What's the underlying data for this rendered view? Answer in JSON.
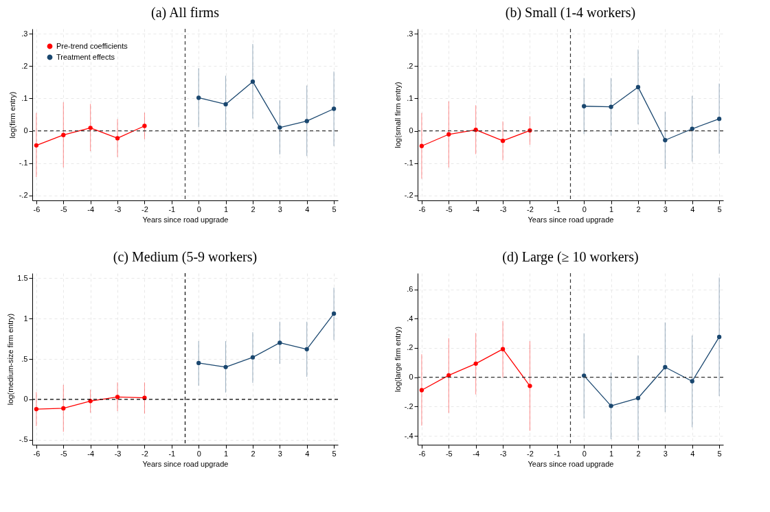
{
  "chart_data": [
    {
      "type": "line",
      "title": "(a) All firms",
      "xlabel": "Years since road upgrade",
      "ylabel": "log(firm entry)",
      "xlim": [
        -6.15,
        5.15
      ],
      "xticks": [
        -6,
        -5,
        -4,
        -3,
        -2,
        -1,
        0,
        1,
        2,
        3,
        4,
        5
      ],
      "ylim": [
        -0.215,
        0.315
      ],
      "yticks": [
        {
          "value": -0.2,
          "label": "-.2"
        },
        {
          "value": -0.1,
          "label": "-.1"
        },
        0,
        {
          "value": 0.1,
          "label": ".1"
        },
        {
          "value": 0.2,
          "label": ".2"
        },
        {
          "value": 0.3,
          "label": ".3"
        }
      ],
      "grid": true,
      "legend": "top left",
      "marker": "circle",
      "series": [
        {
          "name": "Pre-trend coefficients",
          "color": "#ff0000",
          "x": [
            -6,
            -5,
            -4,
            -3,
            -2
          ],
          "values": [
            -0.045,
            -0.013,
            0.009,
            -0.023,
            0.015
          ],
          "errors": [
            [
              -0.143,
              0.055
            ],
            [
              -0.113,
              0.088
            ],
            [
              -0.063,
              0.083
            ],
            [
              -0.081,
              0.036
            ],
            [
              -0.026,
              0.056
            ]
          ]
        },
        {
          "name": "Treatment effects",
          "color": "#1a476f",
          "x": [
            0,
            1,
            2,
            3,
            4,
            5
          ],
          "values": [
            0.102,
            0.082,
            0.152,
            0.01,
            0.03,
            0.068
          ],
          "errors": [
            [
              0.011,
              0.193
            ],
            [
              -0.004,
              0.17
            ],
            [
              0.038,
              0.268
            ],
            [
              -0.073,
              0.094
            ],
            [
              -0.078,
              0.14
            ],
            [
              -0.047,
              0.183
            ]
          ]
        }
      ],
      "ref_lines": [
        {
          "axis": "y",
          "value": 0,
          "color": "#333333",
          "line_style": "dashed"
        },
        {
          "axis": "x",
          "value": -0.5,
          "color": "#333333",
          "line_style": "dashed"
        }
      ]
    },
    {
      "type": "line",
      "title": "(b) Small (1-4 workers)",
      "xlabel": "Years since road upgrade",
      "ylabel": "log(small firm entry)",
      "xlim": [
        -6.15,
        5.15
      ],
      "xticks": [
        -6,
        -5,
        -4,
        -3,
        -2,
        -1,
        0,
        1,
        2,
        3,
        4,
        5
      ],
      "ylim": [
        -0.215,
        0.315
      ],
      "yticks": [
        {
          "value": -0.2,
          "label": "-.2"
        },
        {
          "value": -0.1,
          "label": "-.1"
        },
        0,
        {
          "value": 0.1,
          "label": ".1"
        },
        {
          "value": 0.2,
          "label": ".2"
        },
        {
          "value": 0.3,
          "label": ".3"
        }
      ],
      "grid": true,
      "legend": "top left",
      "marker": "circle",
      "series": [
        {
          "name": "Pre-trend coefficients",
          "color": "#ff0000",
          "x": [
            -6,
            -5,
            -4,
            -3,
            -2
          ],
          "values": [
            -0.047,
            -0.011,
            0.003,
            -0.031,
            0.001
          ],
          "errors": [
            [
              -0.148,
              0.055
            ],
            [
              -0.113,
              0.091
            ],
            [
              -0.072,
              0.079
            ],
            [
              -0.091,
              0.029
            ],
            [
              -0.043,
              0.045
            ]
          ]
        },
        {
          "name": "Treatment effects",
          "color": "#1a476f",
          "x": [
            0,
            1,
            2,
            3,
            4,
            5
          ],
          "values": [
            0.076,
            0.074,
            0.135,
            -0.029,
            0.006,
            0.037
          ],
          "errors": [
            [
              -0.01,
              0.163
            ],
            [
              -0.015,
              0.163
            ],
            [
              0.02,
              0.251
            ],
            [
              -0.117,
              0.059
            ],
            [
              -0.095,
              0.108
            ],
            [
              -0.071,
              0.146
            ]
          ]
        }
      ],
      "ref_lines": [
        {
          "axis": "y",
          "value": 0,
          "color": "#333333",
          "line_style": "dashed"
        },
        {
          "axis": "x",
          "value": -0.5,
          "color": "#333333",
          "line_style": "dashed"
        }
      ]
    },
    {
      "type": "line",
      "title": "(c) Medium (5-9 workers)",
      "xlabel": "Years since road upgrade",
      "ylabel": "log(medium-size firm entry)",
      "xlim": [
        -6.15,
        5.15
      ],
      "xticks": [
        -6,
        -5,
        -4,
        -3,
        -2,
        -1,
        0,
        1,
        2,
        3,
        4,
        5
      ],
      "ylim": [
        -0.56,
        1.56
      ],
      "yticks": [
        {
          "value": -0.5,
          "label": "-.5"
        },
        0,
        {
          "value": 0.5,
          "label": ".5"
        },
        1,
        1.5
      ],
      "grid": true,
      "legend": "top left",
      "marker": "circle",
      "series": [
        {
          "name": "Pre-trend coefficients",
          "color": "#ff0000",
          "x": [
            -6,
            -5,
            -4,
            -3,
            -2
          ],
          "values": [
            -0.12,
            -0.11,
            -0.02,
            0.03,
            0.02
          ],
          "errors": [
            [
              -0.33,
              0.09
            ],
            [
              -0.4,
              0.18
            ],
            [
              -0.165,
              0.12
            ],
            [
              -0.145,
              0.21
            ],
            [
              -0.175,
              0.21
            ]
          ]
        },
        {
          "name": "Treatment effects",
          "color": "#1a476f",
          "x": [
            0,
            1,
            2,
            3,
            4,
            5
          ],
          "values": [
            0.45,
            0.4,
            0.52,
            0.7,
            0.62,
            1.06
          ],
          "errors": [
            [
              0.17,
              0.72
            ],
            [
              0.085,
              0.72
            ],
            [
              0.205,
              0.83
            ],
            [
              0.44,
              0.96
            ],
            [
              0.28,
              0.96
            ],
            [
              0.735,
              1.38
            ]
          ]
        }
      ],
      "ref_lines": [
        {
          "axis": "y",
          "value": 0,
          "color": "#000000",
          "line_style": "dashed"
        },
        {
          "axis": "x",
          "value": -0.5,
          "color": "#000000",
          "line_style": "dashed"
        }
      ]
    },
    {
      "type": "line",
      "title": "(d) Large (≥ 10 workers)",
      "xlabel": "Years since road upgrade",
      "ylabel": "log(large firm entry)",
      "xlim": [
        -6.15,
        5.15
      ],
      "xticks": [
        -6,
        -5,
        -4,
        -3,
        -2,
        -1,
        0,
        1,
        2,
        3,
        4,
        5
      ],
      "ylim": [
        -0.46,
        0.71
      ],
      "yticks": [
        {
          "value": -0.4,
          "label": "-.4"
        },
        {
          "value": -0.2,
          "label": "-.2"
        },
        0,
        {
          "value": 0.2,
          "label": ".2"
        },
        {
          "value": 0.4,
          "label": ".4"
        },
        {
          "value": 0.6,
          "label": ".6"
        }
      ],
      "grid": true,
      "legend": "top left",
      "marker": "circle",
      "series": [
        {
          "name": "Pre-trend coefficients",
          "color": "#ff0000",
          "x": [
            -6,
            -5,
            -4,
            -3,
            -2
          ],
          "values": [
            -0.088,
            0.013,
            0.093,
            0.192,
            -0.059
          ],
          "errors": [
            [
              -0.33,
              0.157
            ],
            [
              -0.243,
              0.267
            ],
            [
              -0.117,
              0.302
            ],
            [
              -0.002,
              0.384
            ],
            [
              -0.365,
              0.246
            ]
          ]
        },
        {
          "name": "Treatment effects",
          "color": "#1a476f",
          "x": [
            0,
            1,
            2,
            3,
            4,
            5
          ],
          "values": [
            0.011,
            -0.195,
            -0.142,
            0.069,
            -0.027,
            0.275
          ],
          "errors": [
            [
              -0.28,
              0.3
            ],
            [
              -0.422,
              0.032
            ],
            [
              -0.43,
              0.149
            ],
            [
              -0.237,
              0.374
            ],
            [
              -0.341,
              0.285
            ],
            [
              -0.128,
              0.68
            ]
          ]
        }
      ],
      "ref_lines": [
        {
          "axis": "y",
          "value": 0,
          "color": "#333333",
          "line_style": "dashed"
        },
        {
          "axis": "x",
          "value": -0.5,
          "color": "#333333",
          "line_style": "dashed"
        }
      ]
    }
  ]
}
